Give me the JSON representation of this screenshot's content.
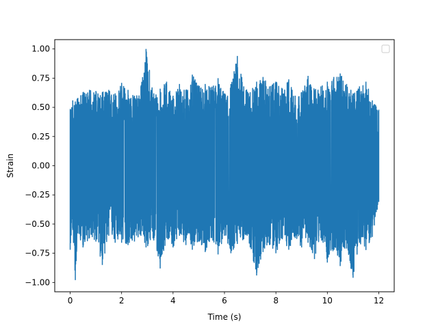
{
  "chart_data": {
    "type": "line",
    "title": "",
    "xlabel": "Time (s)",
    "ylabel": "Strain",
    "xlim": [
      -0.6,
      12.6
    ],
    "ylim": [
      -1.08,
      1.08
    ],
    "xticks": [
      0,
      2,
      4,
      6,
      8,
      10,
      12
    ],
    "xtick_labels": [
      "0",
      "2",
      "4",
      "6",
      "8",
      "10",
      "12"
    ],
    "yticks": [
      -1.0,
      -0.75,
      -0.5,
      -0.25,
      0.0,
      0.25,
      0.5,
      0.75,
      1.0
    ],
    "ytick_labels": [
      "−1.00",
      "−0.75",
      "−0.50",
      "−0.25",
      "0.00",
      "0.25",
      "0.50",
      "0.75",
      "1.00"
    ],
    "grid": false,
    "legend": {
      "location": "upper right",
      "entries": []
    },
    "series": [
      {
        "color": "#1f77b4",
        "x_range": [
          0,
          12
        ],
        "envelope": {
          "x": [
            0,
            0.1,
            0.2,
            0.3,
            0.5,
            0.75,
            1.0,
            1.25,
            1.5,
            1.75,
            2.0,
            2.25,
            2.5,
            2.75,
            2.95,
            3.25,
            3.5,
            3.75,
            4.0,
            4.25,
            4.5,
            4.75,
            5.0,
            5.25,
            5.5,
            5.75,
            6.0,
            6.25,
            6.5,
            6.75,
            7.0,
            7.25,
            7.5,
            7.75,
            8.0,
            8.25,
            8.5,
            8.75,
            9.0,
            9.25,
            9.5,
            9.75,
            10.0,
            10.25,
            10.5,
            10.75,
            11.0,
            11.25,
            11.5,
            11.75,
            12.0
          ],
          "max": [
            0.48,
            0.56,
            0.55,
            0.58,
            0.63,
            0.65,
            0.64,
            0.63,
            0.65,
            0.62,
            0.71,
            0.65,
            0.6,
            0.68,
            1.0,
            0.62,
            0.66,
            0.72,
            0.6,
            0.7,
            0.65,
            0.78,
            0.68,
            0.7,
            0.67,
            0.75,
            0.62,
            0.7,
            0.94,
            0.68,
            0.63,
            0.72,
            0.76,
            0.68,
            0.72,
            0.66,
            0.74,
            0.6,
            0.63,
            0.77,
            0.65,
            0.68,
            0.72,
            0.76,
            0.79,
            0.7,
            0.62,
            0.68,
            0.72,
            0.56,
            0.48
          ],
          "min": [
            -0.72,
            -0.55,
            -0.98,
            -0.58,
            -0.7,
            -0.62,
            -0.65,
            -0.85,
            -0.6,
            -0.66,
            -0.66,
            -0.68,
            -0.65,
            -0.6,
            -0.7,
            -0.64,
            -0.88,
            -0.62,
            -0.7,
            -0.6,
            -0.68,
            -0.72,
            -0.65,
            -0.74,
            -0.62,
            -0.76,
            -0.6,
            -0.75,
            -0.67,
            -0.63,
            -0.7,
            -0.94,
            -0.74,
            -0.68,
            -0.75,
            -0.63,
            -0.72,
            -0.62,
            -0.7,
            -0.66,
            -0.8,
            -0.62,
            -0.83,
            -0.72,
            -0.86,
            -0.71,
            -0.96,
            -0.66,
            -0.72,
            -0.61,
            -0.31
          ]
        }
      }
    ]
  }
}
